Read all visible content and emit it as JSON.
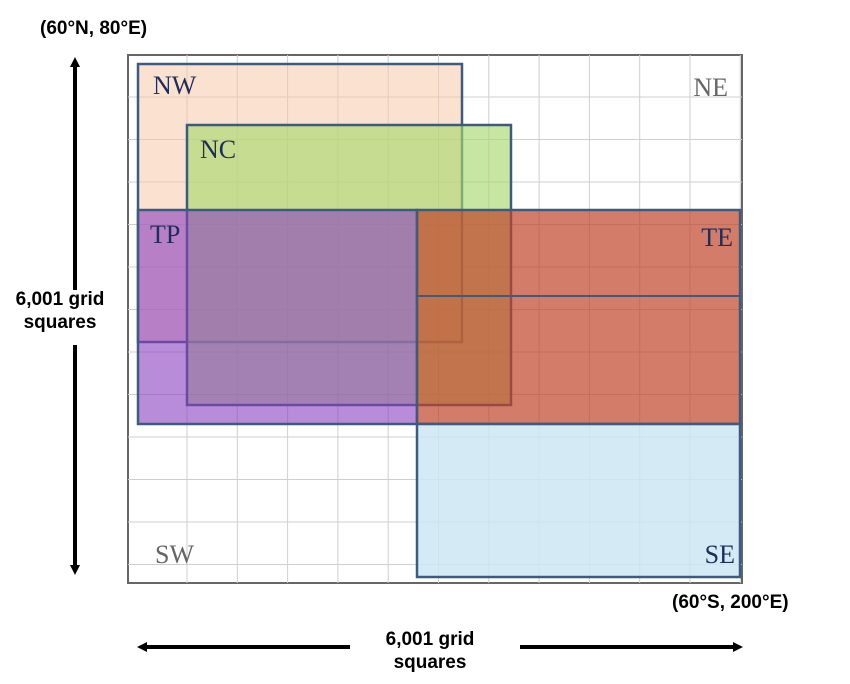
{
  "corners": {
    "top_left": "(60°N, 80°E)",
    "bottom_right": "(60°S, 200°E)"
  },
  "dimensions": {
    "vertical": "6,001 grid squares",
    "horizontal": "6,001 grid squares"
  },
  "regions": [
    {
      "label": "NW"
    },
    {
      "label": "NC"
    },
    {
      "label": "TP"
    },
    {
      "label": "TE"
    },
    {
      "label": "SE"
    },
    {
      "label": "SW"
    },
    {
      "label": "NE"
    }
  ]
}
